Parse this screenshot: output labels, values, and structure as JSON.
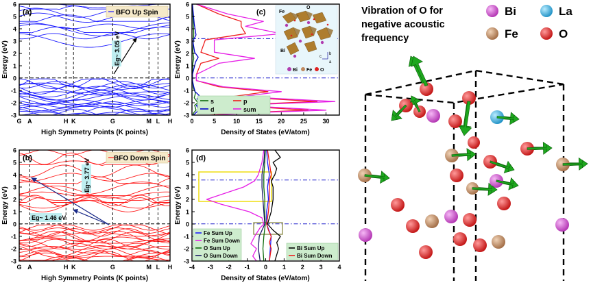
{
  "chart_data": [
    {
      "type": "line",
      "panel": "(a)",
      "title": "BFO Up Spin",
      "xlabel": "High Symmetry Points (K points)",
      "ylabel": "Energy (eV)",
      "ylim": [
        -3,
        6
      ],
      "xticks": [
        "G",
        "A",
        "H",
        "K",
        "G",
        "M",
        "L",
        "H"
      ],
      "yticks": [
        "-3",
        "-2",
        "-1",
        "0",
        "1",
        "2",
        "3",
        "4",
        "5",
        "6"
      ],
      "fermi_level": 0,
      "annotation": "Eg~ 3.05 eV",
      "bandgap_ev": 3.05,
      "series_color": "#1a1aff"
    },
    {
      "type": "line",
      "panel": "(b)",
      "title": "BFO Down Spin",
      "xlabel": "High Symmetry Points (K points)",
      "ylabel": "Energy (eV)",
      "ylim": [
        -3,
        6
      ],
      "xticks": [
        "G",
        "A",
        "H",
        "K",
        "G",
        "M",
        "L",
        "H"
      ],
      "yticks": [
        "-3",
        "-2",
        "-1",
        "0",
        "1",
        "2",
        "3",
        "4",
        "5",
        "6"
      ],
      "fermi_level": 0,
      "annotations": [
        "Eg~ 3.77 eV",
        "Eg~ 1.46 eV"
      ],
      "bandgaps_ev": [
        3.77,
        1.46
      ],
      "series_color": "#ff1a1a"
    },
    {
      "type": "line",
      "panel": "(c)",
      "xlabel": "Density of States (eV/atom)",
      "ylabel": "Energy (eV)",
      "xlim": [
        0,
        33
      ],
      "ylim": [
        -3,
        6
      ],
      "xticks": [
        "0",
        "5",
        "10",
        "15",
        "20",
        "25",
        "30"
      ],
      "yticks": [
        "-3",
        "-2",
        "-1",
        "0",
        "1",
        "2",
        "3",
        "4",
        "5",
        "6"
      ],
      "ref_lines": [
        0,
        3.2
      ],
      "legend": [
        "s",
        "p",
        "d",
        "sum"
      ],
      "inset_labels": [
        "Fe",
        "O",
        "Bi",
        "Bi",
        "Fe",
        "O"
      ],
      "series": [
        {
          "name": "s",
          "color": "#0d6b0d",
          "energy": [
            -3,
            -2.8,
            -2.6,
            -2.2,
            -2,
            -1.6,
            -1.2,
            -0.8,
            -0.2,
            0.4,
            1.2,
            1.6,
            2.2,
            3,
            3.6,
            4.4,
            5.2,
            6
          ],
          "dos": [
            0.2,
            0.4,
            0.9,
            0.6,
            1.3,
            0.5,
            0.8,
            0.3,
            0.1,
            0.1,
            0.2,
            0.4,
            0.2,
            0.3,
            0.4,
            0.3,
            0.2,
            0.1
          ]
        },
        {
          "name": "d",
          "color": "#0000cc",
          "energy": [
            -3,
            -2.6,
            -2.2,
            -2,
            -1.7,
            -1.4,
            -1.1,
            -0.7,
            -0.2,
            0.3,
            1.3,
            1.7,
            2.1,
            3,
            3.5,
            4.4,
            5.2,
            6
          ],
          "dos": [
            0.3,
            1.5,
            1,
            2.2,
            1.1,
            1.6,
            0.7,
            0.4,
            0.1,
            0.1,
            0.8,
            1.4,
            0.6,
            0.2,
            0.9,
            0.5,
            0.3,
            0.1
          ]
        },
        {
          "name": "p",
          "color": "#ee1c1c",
          "energy": [
            -3,
            -2.8,
            -2.6,
            -2.2,
            -1.9,
            -1.5,
            -1.1,
            -0.7,
            -0.2,
            0.3,
            1.2,
            1.6,
            2.1,
            3.1,
            3.6,
            4.2,
            4.6,
            5.2,
            6
          ],
          "dos": [
            4,
            12,
            26,
            8,
            28,
            9,
            17,
            6,
            1,
            1,
            2,
            6,
            2,
            3,
            12,
            11,
            11,
            6,
            1
          ]
        },
        {
          "name": "sum",
          "color": "#e61ee6",
          "energy": [
            -3,
            -2.8,
            -2.6,
            -2.2,
            -1.9,
            -1.5,
            -1.1,
            -0.7,
            -0.2,
            0.3,
            1.2,
            1.6,
            2.1,
            3.1,
            3.6,
            4.2,
            4.6,
            5.2,
            6
          ],
          "dos": [
            5,
            14,
            30,
            10,
            32,
            11,
            20,
            7,
            1,
            1,
            6,
            14,
            5,
            5,
            20,
            12,
            16,
            8,
            1
          ]
        }
      ]
    },
    {
      "type": "line",
      "panel": "(d)",
      "xlabel": "Density of States (eV/atom)",
      "ylabel": "Energy (eV)",
      "xlim": [
        -4,
        4
      ],
      "ylim": [
        -3,
        6
      ],
      "xticks": [
        "-4",
        "-3",
        "-2",
        "-1",
        "0",
        "1",
        "2",
        "3",
        "4"
      ],
      "yticks": [
        "-3",
        "-2",
        "-1",
        "0",
        "1",
        "2",
        "3",
        "4",
        "5",
        "6"
      ],
      "ref_lines": [
        0,
        3.5
      ],
      "legend": [
        "Fe Sum Up",
        "Fe Sum Down",
        "O Sum Up",
        "O Sum Down",
        "Bi Sum Up",
        "Bi Sum Down"
      ],
      "series": [
        {
          "name": "Fe Sum Up",
          "color": "#1a1aff",
          "energy": [
            -3,
            -2,
            -1,
            0,
            1,
            2,
            3,
            4,
            5,
            6
          ],
          "dos": [
            0.2,
            0.25,
            0.3,
            0.05,
            0.05,
            0.15,
            0.1,
            0.2,
            0.1,
            0.05
          ]
        },
        {
          "name": "Fe Sum Down",
          "color": "#e61ee6",
          "energy": [
            -3,
            -2.6,
            -2,
            -1.6,
            -1,
            -0.3,
            0,
            0.5,
            1,
            1.6,
            2,
            2.5,
            3,
            3.5,
            4,
            4.5,
            5,
            6
          ],
          "dos": [
            -0.5,
            -0.7,
            -0.5,
            -0.8,
            -0.6,
            -0.3,
            -0.1,
            -0.2,
            -0.9,
            -2.4,
            -3.2,
            -2.2,
            -1.2,
            -0.6,
            -0.4,
            -0.3,
            -0.2,
            -0.1
          ]
        },
        {
          "name": "O Sum Up",
          "color": "#0d6b0d",
          "energy": [
            -3,
            -2,
            -1,
            0,
            1,
            2,
            3,
            4,
            5,
            6
          ],
          "dos": [
            -0.1,
            -0.15,
            -0.1,
            -0.02,
            -0.05,
            -0.05,
            -0.1,
            -0.1,
            -0.05,
            -0.02
          ]
        },
        {
          "name": "O Sum Down",
          "color": "#1a1a66",
          "energy": [
            -3,
            -2,
            -1,
            0,
            1,
            2,
            3,
            4,
            5,
            6
          ],
          "dos": [
            -0.3,
            -0.4,
            -0.35,
            -0.05,
            -0.1,
            -0.15,
            -0.2,
            -0.2,
            -0.1,
            -0.05
          ]
        },
        {
          "name": "Bi Sum Up",
          "color": "#000000",
          "energy": [
            -3,
            -2.5,
            -2,
            -1.5,
            -1,
            -0.5,
            0,
            0.5,
            1,
            2,
            3,
            3.5,
            4,
            4.5,
            5,
            5.4,
            6
          ],
          "dos": [
            0.5,
            0.6,
            0.7,
            0.6,
            0.8,
            0.4,
            0.1,
            0.2,
            0.3,
            0.4,
            0.4,
            0.3,
            0.5,
            0.6,
            0.4,
            0.8,
            0.5
          ]
        },
        {
          "name": "Bi Sum Down",
          "color": "#ee1c1c",
          "energy": [
            -3,
            -2.5,
            -2,
            -1.5,
            -1,
            -0.5,
            0,
            0.5,
            1,
            2,
            3,
            3.5,
            4,
            4.5,
            5,
            6
          ],
          "dos": [
            0.2,
            0.25,
            0.3,
            0.2,
            0.3,
            0.15,
            0.05,
            0.1,
            0.15,
            0.2,
            0.2,
            0.2,
            0.3,
            0.25,
            0.2,
            0.1
          ]
        }
      ]
    }
  ],
  "vibration_panel": {
    "title_lines": [
      "Vibration of O for",
      "negative acoustic",
      "frequency"
    ],
    "legend": [
      {
        "label": "Bi",
        "color": "#cc44cc"
      },
      {
        "label": "La",
        "color": "#22aadd"
      },
      {
        "label": "Fe",
        "color": "#c08a60"
      },
      {
        "label": "O",
        "color": "#e02020"
      }
    ]
  }
}
